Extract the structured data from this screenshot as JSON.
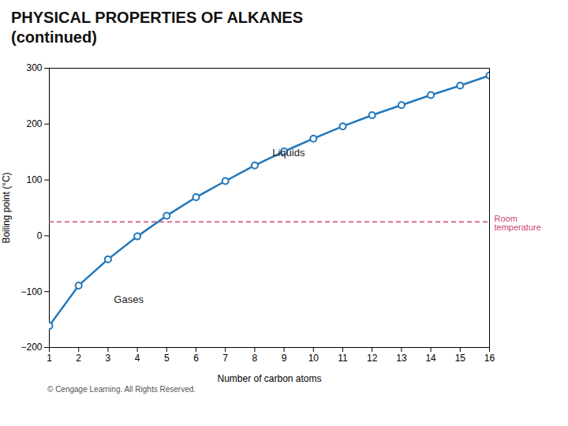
{
  "chart_data": {
    "type": "line",
    "title": "PHYSICAL PROPERTIES OF ALKANES",
    "subtitle": "(continued)",
    "xlabel": "Number of carbon atoms",
    "ylabel": "Boiling point (°C)",
    "x": [
      1,
      2,
      3,
      4,
      5,
      6,
      7,
      8,
      9,
      10,
      11,
      12,
      13,
      14,
      15,
      16
    ],
    "values": [
      -161,
      -89,
      -42,
      -1,
      36,
      69,
      98,
      126,
      151,
      174,
      196,
      216,
      234,
      252,
      269,
      287
    ],
    "color": "#2277bb",
    "marker": "circle",
    "xlim": [
      1,
      16
    ],
    "xticks": [
      1,
      2,
      3,
      4,
      5,
      6,
      7,
      8,
      9,
      10,
      11,
      12,
      13,
      14,
      15,
      16
    ],
    "ylim": [
      -200,
      300
    ],
    "yticks": [
      -200,
      -100,
      0,
      100,
      200,
      300
    ],
    "grid": false,
    "annotations": [
      {
        "text": "Gases",
        "x": 3.2,
        "y": -115
      },
      {
        "text": "Liquids",
        "x": 8.6,
        "y": 148
      }
    ],
    "reference_line": {
      "y": 25,
      "color": "#cc4477",
      "line_style": "dashed",
      "text": "Room\ntemperature"
    },
    "caption": "© Cengage Learning. All Rights Reserved."
  }
}
